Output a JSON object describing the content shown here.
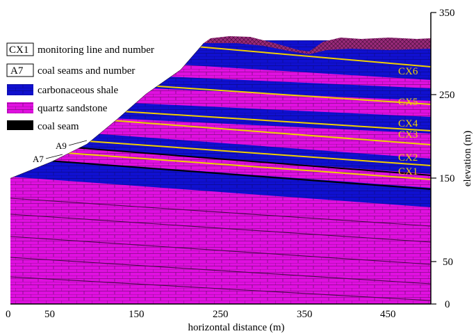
{
  "figure": {
    "x_axis": {
      "title": "horizontal distance  (m)",
      "ticks": [
        "0",
        "50",
        "150",
        "250",
        "350",
        "450"
      ]
    },
    "y_axis": {
      "title": "elevation  (m)",
      "ticks": [
        "350",
        "250",
        "150",
        "50",
        "0"
      ]
    }
  },
  "legend": {
    "items": [
      {
        "key": "CX1",
        "label": "monitoring line and number",
        "swatch": "boxed-text"
      },
      {
        "key": "A7",
        "label": "coal seams and number",
        "swatch": "boxed-text"
      },
      {
        "key": "",
        "label": "carbonaceous shale",
        "swatch": "#1010d0"
      },
      {
        "key": "",
        "label": "quartz sandstone",
        "swatch": "#e010e0"
      },
      {
        "key": "",
        "label": "coal seam",
        "swatch": "#000000"
      }
    ]
  },
  "monitoring_lines": [
    "CX6",
    "CX5",
    "CX4",
    "CX3",
    "CX2",
    "CX1"
  ],
  "coal_seams": [
    "A9",
    "A7"
  ],
  "colors": {
    "quartz_sandstone": "#e010e0",
    "carbonaceous_shale": "#1010d0",
    "monitoring_line": "#f0d000",
    "coal_seam": "#000000",
    "top_soil": "#9a2a7a"
  }
}
